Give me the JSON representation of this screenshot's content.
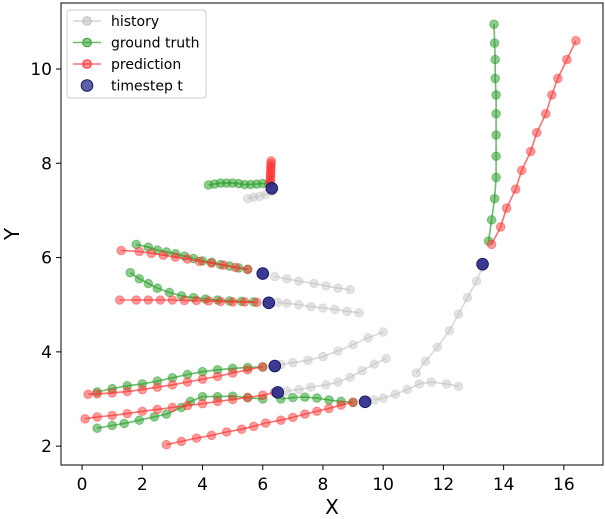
{
  "chart_data": {
    "type": "scatter",
    "xlabel": "X",
    "ylabel": "Y",
    "xlim": [
      -0.7,
      17.3
    ],
    "ylim": [
      1.6,
      11.4
    ],
    "xticks": [
      0,
      2,
      4,
      6,
      8,
      10,
      12,
      14,
      16
    ],
    "yticks": [
      2,
      4,
      6,
      8,
      10
    ],
    "grid": false,
    "legend_placement": "top-left",
    "legend": [
      {
        "label": "history",
        "kind": "history"
      },
      {
        "label": "ground truth",
        "kind": "gt"
      },
      {
        "label": "prediction",
        "kind": "pred"
      },
      {
        "label": "timestep t",
        "kind": "ts"
      }
    ],
    "colors": {
      "history": "#c0c0c0",
      "gt": "#2ca02c",
      "pred": "#ff3333",
      "ts": "#2a2a8c"
    },
    "agents": [
      {
        "history": [
          [
            5.5,
            7.25
          ],
          [
            5.7,
            7.28
          ],
          [
            5.9,
            7.3
          ],
          [
            6.1,
            7.34
          ],
          [
            6.3,
            7.4
          ]
        ],
        "ground_truth": [
          [
            6.2,
            7.56
          ],
          [
            6.0,
            7.57
          ],
          [
            5.8,
            7.56
          ],
          [
            5.6,
            7.55
          ],
          [
            5.4,
            7.55
          ],
          [
            5.2,
            7.57
          ],
          [
            5.0,
            7.58
          ],
          [
            4.8,
            7.58
          ],
          [
            4.6,
            7.58
          ],
          [
            4.4,
            7.56
          ],
          [
            4.2,
            7.54
          ]
        ],
        "prediction": [
          [
            6.25,
            7.55
          ],
          [
            6.25,
            7.6
          ],
          [
            6.25,
            7.65
          ],
          [
            6.26,
            7.7
          ],
          [
            6.26,
            7.75
          ],
          [
            6.26,
            7.8
          ],
          [
            6.27,
            7.85
          ],
          [
            6.27,
            7.9
          ],
          [
            6.27,
            7.95
          ],
          [
            6.28,
            8.0
          ],
          [
            6.28,
            8.05
          ]
        ],
        "timestep": [
          6.3,
          7.47
        ]
      },
      {
        "history": [
          [
            8.9,
            5.32
          ],
          [
            8.5,
            5.35
          ],
          [
            8.1,
            5.4
          ],
          [
            7.7,
            5.45
          ],
          [
            7.2,
            5.5
          ],
          [
            6.8,
            5.55
          ],
          [
            6.4,
            5.6
          ]
        ],
        "ground_truth": [
          [
            5.5,
            5.75
          ],
          [
            5.2,
            5.78
          ],
          [
            4.9,
            5.82
          ],
          [
            4.6,
            5.85
          ],
          [
            4.3,
            5.9
          ],
          [
            4.0,
            5.93
          ],
          [
            3.7,
            5.98
          ],
          [
            3.4,
            6.03
          ],
          [
            3.1,
            6.08
          ],
          [
            2.8,
            6.12
          ],
          [
            2.5,
            6.16
          ],
          [
            2.2,
            6.22
          ],
          [
            1.8,
            6.28
          ]
        ],
        "prediction": [
          [
            5.5,
            5.75
          ],
          [
            5.1,
            5.79
          ],
          [
            4.7,
            5.84
          ],
          [
            4.3,
            5.88
          ],
          [
            3.9,
            5.92
          ],
          [
            3.5,
            5.97
          ],
          [
            3.1,
            6.01
          ],
          [
            2.7,
            6.05
          ],
          [
            2.3,
            6.09
          ],
          [
            1.9,
            6.13
          ],
          [
            1.3,
            6.15
          ]
        ],
        "timestep": [
          6.0,
          5.66
        ]
      },
      {
        "history": [
          [
            9.2,
            4.83
          ],
          [
            8.8,
            4.86
          ],
          [
            8.4,
            4.9
          ],
          [
            8.0,
            4.93
          ],
          [
            7.6,
            4.96
          ],
          [
            7.2,
            5.0
          ],
          [
            6.8,
            5.03
          ],
          [
            6.5,
            5.05
          ]
        ],
        "ground_truth": [
          [
            5.7,
            5.06
          ],
          [
            5.3,
            5.07
          ],
          [
            4.9,
            5.08
          ],
          [
            4.5,
            5.1
          ],
          [
            4.1,
            5.12
          ],
          [
            3.7,
            5.15
          ],
          [
            3.3,
            5.19
          ],
          [
            2.9,
            5.26
          ],
          [
            2.5,
            5.35
          ],
          [
            2.2,
            5.45
          ],
          [
            1.9,
            5.55
          ],
          [
            1.6,
            5.68
          ]
        ],
        "prediction": [
          [
            5.8,
            5.05
          ],
          [
            5.4,
            5.06
          ],
          [
            5.0,
            5.06
          ],
          [
            4.6,
            5.07
          ],
          [
            4.2,
            5.08
          ],
          [
            3.8,
            5.09
          ],
          [
            3.4,
            5.09
          ],
          [
            3.0,
            5.1
          ],
          [
            2.6,
            5.1
          ],
          [
            2.2,
            5.1
          ],
          [
            1.8,
            5.1
          ],
          [
            1.25,
            5.1
          ]
        ],
        "timestep": [
          6.2,
          5.04
        ]
      },
      {
        "history": [
          [
            10.0,
            4.42
          ],
          [
            9.5,
            4.3
          ],
          [
            9.0,
            4.15
          ],
          [
            8.5,
            4.02
          ],
          [
            8.0,
            3.9
          ],
          [
            7.5,
            3.82
          ],
          [
            7.0,
            3.77
          ],
          [
            6.6,
            3.73
          ]
        ],
        "ground_truth": [
          [
            6.0,
            3.68
          ],
          [
            5.5,
            3.67
          ],
          [
            5.0,
            3.65
          ],
          [
            4.5,
            3.62
          ],
          [
            4.0,
            3.58
          ],
          [
            3.5,
            3.52
          ],
          [
            3.0,
            3.45
          ],
          [
            2.5,
            3.38
          ],
          [
            2.0,
            3.32
          ],
          [
            1.5,
            3.28
          ],
          [
            1.0,
            3.22
          ],
          [
            0.5,
            3.15
          ]
        ],
        "prediction": [
          [
            6.0,
            3.68
          ],
          [
            5.5,
            3.62
          ],
          [
            5.0,
            3.55
          ],
          [
            4.5,
            3.48
          ],
          [
            4.0,
            3.42
          ],
          [
            3.5,
            3.36
          ],
          [
            3.0,
            3.3
          ],
          [
            2.5,
            3.25
          ],
          [
            2.0,
            3.2
          ],
          [
            1.5,
            3.16
          ],
          [
            1.0,
            3.13
          ],
          [
            0.5,
            3.11
          ],
          [
            0.2,
            3.1
          ]
        ],
        "timestep": [
          6.4,
          3.7
        ]
      },
      {
        "history": [
          [
            10.1,
            3.86
          ],
          [
            9.7,
            3.74
          ],
          [
            9.3,
            3.6
          ],
          [
            8.9,
            3.46
          ],
          [
            8.5,
            3.36
          ],
          [
            8.1,
            3.3
          ],
          [
            7.6,
            3.25
          ],
          [
            7.2,
            3.2
          ],
          [
            6.8,
            3.17
          ]
        ],
        "ground_truth": [
          [
            6.0,
            3.0
          ],
          [
            5.5,
            3.03
          ],
          [
            5.0,
            3.06
          ],
          [
            4.5,
            3.05
          ],
          [
            4.0,
            3.05
          ],
          [
            3.6,
            2.95
          ],
          [
            3.3,
            2.82
          ],
          [
            2.8,
            2.68
          ],
          [
            2.4,
            2.62
          ],
          [
            1.9,
            2.55
          ],
          [
            1.4,
            2.48
          ],
          [
            1.0,
            2.44
          ],
          [
            0.5,
            2.38
          ]
        ],
        "prediction": [
          [
            6.4,
            3.14
          ],
          [
            6.0,
            3.08
          ],
          [
            5.5,
            3.03
          ],
          [
            5.0,
            2.99
          ],
          [
            4.5,
            2.95
          ],
          [
            4.0,
            2.9
          ],
          [
            3.5,
            2.86
          ],
          [
            3.0,
            2.82
          ],
          [
            2.5,
            2.78
          ],
          [
            2.0,
            2.74
          ],
          [
            1.5,
            2.69
          ],
          [
            1.0,
            2.65
          ],
          [
            0.5,
            2.62
          ],
          [
            0.1,
            2.58
          ]
        ],
        "timestep": [
          6.5,
          3.14
        ]
      },
      {
        "history": [
          [
            12.5,
            3.27
          ],
          [
            12.1,
            3.32
          ],
          [
            11.6,
            3.36
          ],
          [
            11.2,
            3.32
          ],
          [
            10.8,
            3.2
          ],
          [
            10.4,
            3.1
          ],
          [
            10.0,
            3.02
          ],
          [
            9.7,
            2.98
          ]
        ],
        "ground_truth": [
          [
            9.0,
            2.93
          ],
          [
            8.6,
            2.95
          ],
          [
            8.2,
            2.98
          ],
          [
            7.8,
            3.02
          ],
          [
            7.4,
            3.04
          ],
          [
            7.0,
            3.03
          ],
          [
            6.6,
            3.0
          ]
        ],
        "prediction": [
          [
            9.0,
            2.93
          ],
          [
            8.6,
            2.87
          ],
          [
            8.2,
            2.8
          ],
          [
            7.8,
            2.74
          ],
          [
            7.4,
            2.68
          ],
          [
            7.0,
            2.61
          ],
          [
            6.6,
            2.55
          ],
          [
            6.1,
            2.49
          ],
          [
            5.7,
            2.42
          ],
          [
            5.3,
            2.36
          ],
          [
            4.8,
            2.3
          ],
          [
            4.3,
            2.23
          ],
          [
            3.8,
            2.17
          ],
          [
            3.3,
            2.1
          ],
          [
            2.8,
            2.03
          ]
        ],
        "timestep": [
          9.4,
          2.94
        ]
      },
      {
        "history": [
          [
            11.1,
            3.55
          ],
          [
            11.4,
            3.8
          ],
          [
            11.8,
            4.1
          ],
          [
            12.2,
            4.45
          ],
          [
            12.5,
            4.8
          ],
          [
            12.8,
            5.15
          ],
          [
            13.1,
            5.5
          ],
          [
            13.3,
            5.8
          ]
        ],
        "ground_truth": [
          [
            13.5,
            6.35
          ],
          [
            13.6,
            6.8
          ],
          [
            13.7,
            7.25
          ],
          [
            13.75,
            7.7
          ],
          [
            13.75,
            8.15
          ],
          [
            13.75,
            8.6
          ],
          [
            13.75,
            9.05
          ],
          [
            13.75,
            9.45
          ],
          [
            13.72,
            9.8
          ],
          [
            13.72,
            10.2
          ],
          [
            13.7,
            10.55
          ],
          [
            13.68,
            10.95
          ]
        ],
        "prediction": [
          [
            13.6,
            6.28
          ],
          [
            13.9,
            6.65
          ],
          [
            14.1,
            7.05
          ],
          [
            14.4,
            7.45
          ],
          [
            14.6,
            7.85
          ],
          [
            14.9,
            8.25
          ],
          [
            15.1,
            8.65
          ],
          [
            15.4,
            9.05
          ],
          [
            15.6,
            9.45
          ],
          [
            15.8,
            9.8
          ],
          [
            16.1,
            10.2
          ],
          [
            16.4,
            10.6
          ]
        ],
        "timestep": [
          13.3,
          5.86
        ]
      }
    ]
  }
}
